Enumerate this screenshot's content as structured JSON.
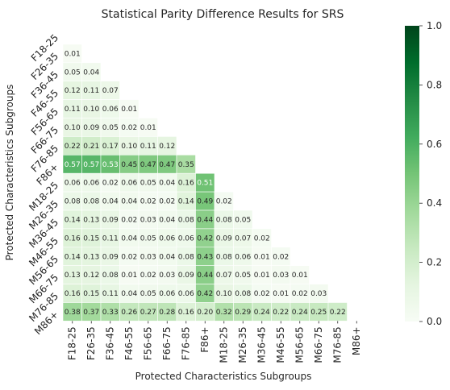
{
  "chart_data": {
    "type": "heatmap",
    "title": "Statistical Parity Difference Results for SRS",
    "xlabel": "Protected Characteristics Subgroups",
    "ylabel": "Protected Characteristics Subgroups",
    "categories": [
      "F18-25",
      "F26-35",
      "F36-45",
      "F46-55",
      "F56-65",
      "F66-75",
      "F76-85",
      "F86+",
      "M18-25",
      "M26-35",
      "M36-45",
      "M46-55",
      "M56-65",
      "M66-75",
      "M76-85",
      "M86+"
    ],
    "values": [
      [],
      [
        0.01
      ],
      [
        0.05,
        0.04
      ],
      [
        0.12,
        0.11,
        0.07
      ],
      [
        0.11,
        0.1,
        0.06,
        0.01
      ],
      [
        0.1,
        0.09,
        0.05,
        0.02,
        0.01
      ],
      [
        0.22,
        0.21,
        0.17,
        0.1,
        0.11,
        0.12
      ],
      [
        0.57,
        0.57,
        0.53,
        0.45,
        0.47,
        0.47,
        0.35
      ],
      [
        0.06,
        0.06,
        0.02,
        0.06,
        0.05,
        0.04,
        0.16,
        0.51
      ],
      [
        0.08,
        0.08,
        0.04,
        0.04,
        0.02,
        0.02,
        0.14,
        0.49,
        0.02
      ],
      [
        0.14,
        0.13,
        0.09,
        0.02,
        0.03,
        0.04,
        0.08,
        0.44,
        0.08,
        0.05
      ],
      [
        0.16,
        0.15,
        0.11,
        0.04,
        0.05,
        0.06,
        0.06,
        0.42,
        0.09,
        0.07,
        0.02
      ],
      [
        0.14,
        0.13,
        0.09,
        0.02,
        0.03,
        0.04,
        0.08,
        0.43,
        0.08,
        0.06,
        0.01,
        0.02
      ],
      [
        0.13,
        0.12,
        0.08,
        0.01,
        0.02,
        0.03,
        0.09,
        0.44,
        0.07,
        0.05,
        0.01,
        0.03,
        0.01
      ],
      [
        0.16,
        0.15,
        0.11,
        0.04,
        0.05,
        0.06,
        0.06,
        0.42,
        0.1,
        0.08,
        0.02,
        0.01,
        0.02,
        0.03
      ],
      [
        0.38,
        0.37,
        0.33,
        0.26,
        0.27,
        0.28,
        0.16,
        0.2,
        0.32,
        0.29,
        0.24,
        0.22,
        0.24,
        0.25,
        0.22
      ]
    ],
    "colorbar": {
      "min": 0.0,
      "max": 1.0,
      "ticks": [
        "0.0",
        "0.2",
        "0.4",
        "0.6",
        "0.8",
        "1.0"
      ]
    },
    "colormap": "Greens",
    "colors": {
      "low": "#f7fcf5",
      "high": "#00441b"
    },
    "mask": "upper-triangle-including-diagonal",
    "grid": false
  }
}
